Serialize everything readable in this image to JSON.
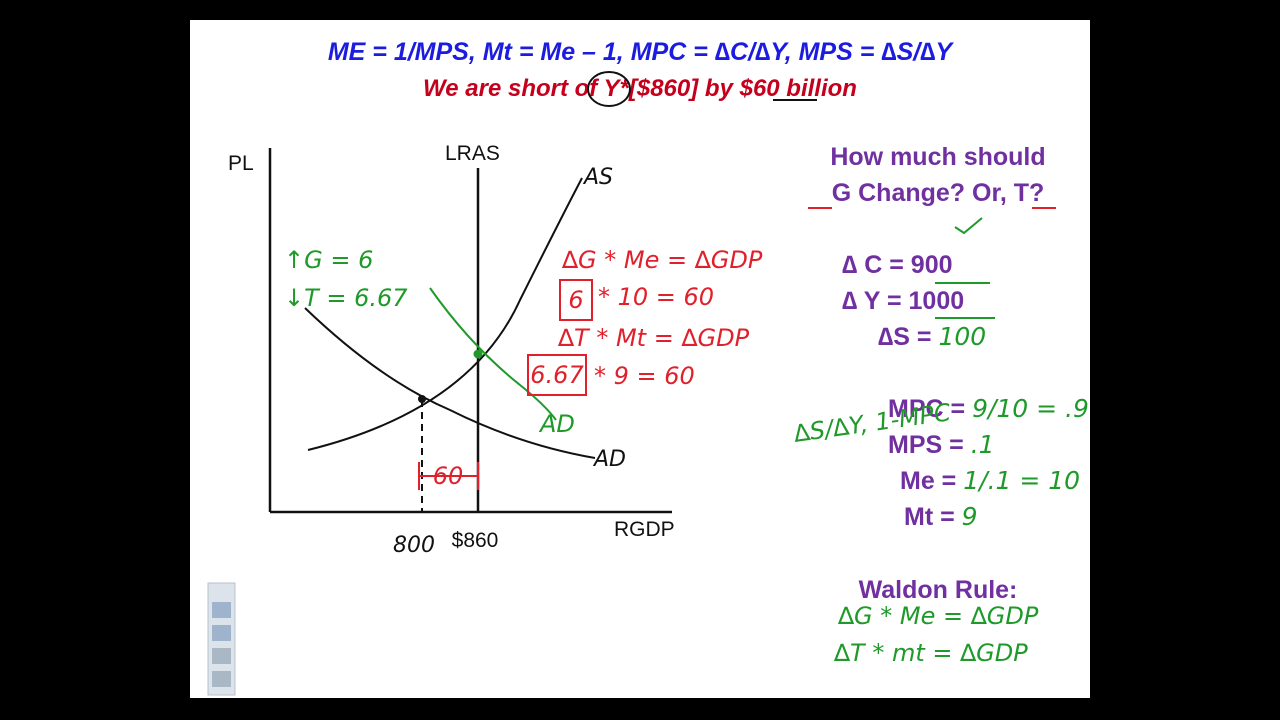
{
  "header": {
    "formulas": "ME = 1/MPS,   Mt = Me – 1, MPC = ∆C/∆Y, MPS = ∆S/∆Y",
    "gap": "We are short of Y*[$860] by $60 billion"
  },
  "graph": {
    "y_axis": "PL",
    "x_axis": "RGDP",
    "lras": "LRAS",
    "as": "AS",
    "ad": "AD",
    "ad_shifted": "AD",
    "x_marks": [
      "800",
      "$860"
    ],
    "gap_label": "60"
  },
  "notes": {
    "g_change": "↑G = 6",
    "t_change": "↓T = 6.67",
    "g_formula": "∆G * Me = ∆GDP",
    "g_answer": "6",
    "g_calc": "* 10 = 60",
    "t_formula": "∆T * Mt = ∆GDP",
    "t_answer": "6.67",
    "t_calc": "* 9 = 60"
  },
  "question": {
    "line1": "How much should",
    "line2": "G Change?  Or, T?"
  },
  "changes": [
    {
      "label": "∆ C =",
      "value": "900"
    },
    {
      "label": "∆ Y =",
      "value": "1000"
    },
    {
      "label": "∆S =",
      "value": "100"
    }
  ],
  "multipliers": [
    {
      "label": "MPC =",
      "value": "9/10 = .9"
    },
    {
      "label": "MPS =",
      "value": ".1"
    },
    {
      "label": "Me =",
      "value": "1/.1 = 10"
    },
    {
      "label": "Mt =",
      "value": "9"
    }
  ],
  "side_note": "∆S/∆Y, 1-MPC",
  "rule": {
    "title": "Waldon Rule:",
    "lines": [
      "∆G * Me = ∆GDP",
      "∆T * mt = ∆GDP"
    ]
  }
}
